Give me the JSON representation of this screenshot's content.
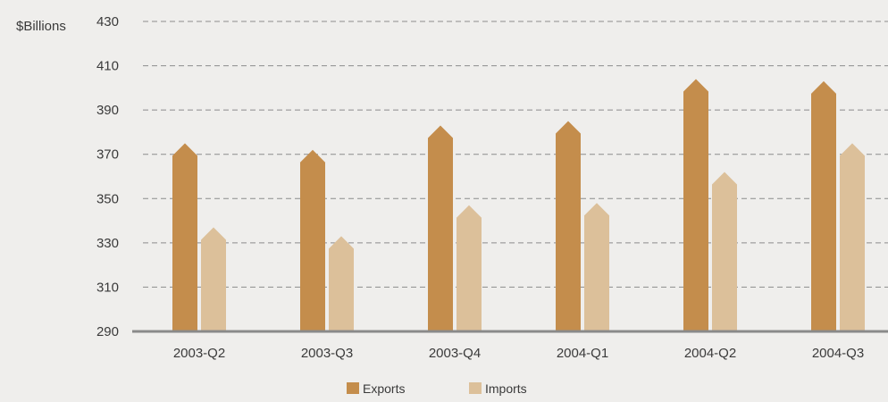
{
  "chart_data": {
    "type": "bar",
    "title": "",
    "xlabel": "",
    "ylabel": "$Billions",
    "ylim": [
      290,
      430
    ],
    "yticks": [
      290,
      310,
      330,
      350,
      370,
      390,
      410,
      430
    ],
    "grid": true,
    "legend_position": "bottom-center",
    "categories": [
      "2003-Q2",
      "2003-Q3",
      "2003-Q4",
      "2004-Q1",
      "2004-Q2",
      "2004-Q3"
    ],
    "series": [
      {
        "name": "Exports",
        "values": [
          375,
          372,
          383,
          385,
          404,
          403
        ],
        "color": "#c48d4c"
      },
      {
        "name": "Imports",
        "values": [
          337,
          333,
          347,
          348,
          362,
          375
        ],
        "color": "#dcc09a"
      }
    ]
  }
}
